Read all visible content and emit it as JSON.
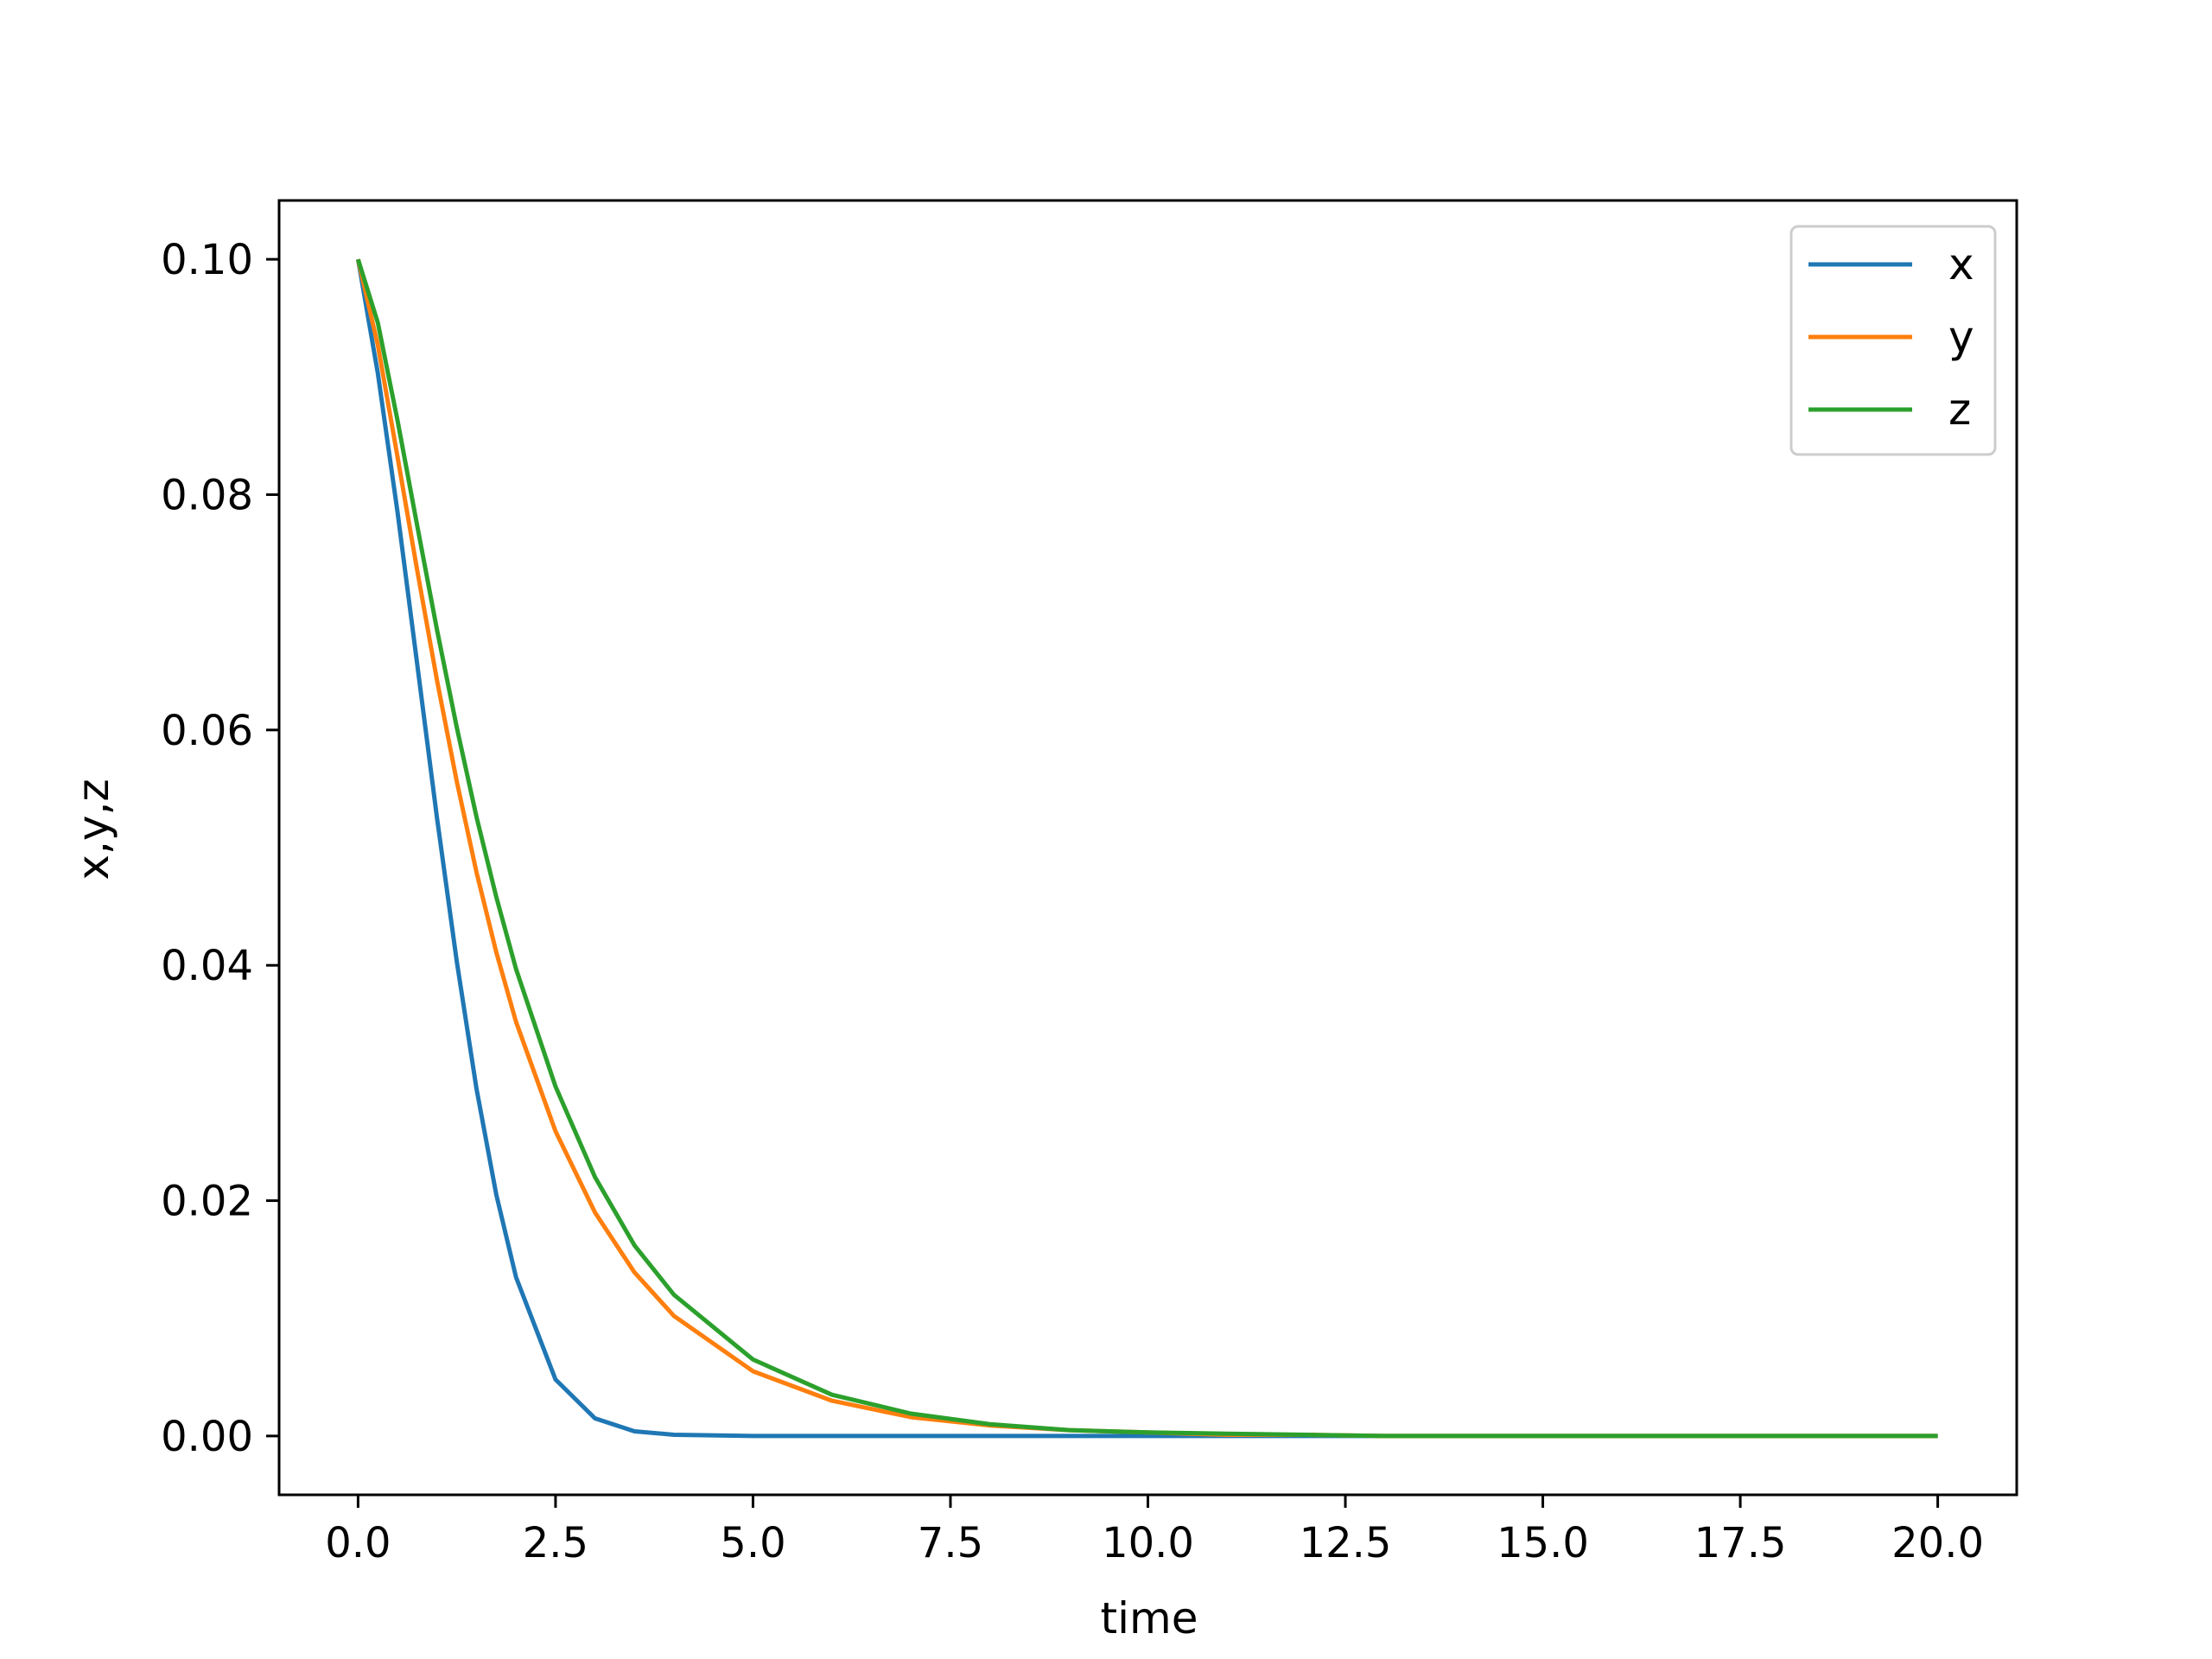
{
  "chart_data": {
    "type": "line",
    "title": "",
    "xlabel": "time",
    "ylabel": "x,y,z",
    "xlim": [
      -1.0,
      21.0
    ],
    "ylim": [
      -0.005,
      0.105
    ],
    "xticks": [
      0.0,
      2.5,
      5.0,
      7.5,
      10.0,
      12.5,
      15.0,
      17.5,
      20.0
    ],
    "xtick_labels": [
      "0.0",
      "2.5",
      "5.0",
      "7.5",
      "10.0",
      "12.5",
      "15.0",
      "17.5",
      "20.0"
    ],
    "yticks": [
      0.0,
      0.02,
      0.04,
      0.06,
      0.08,
      0.1
    ],
    "ytick_labels": [
      "0.00",
      "0.02",
      "0.04",
      "0.06",
      "0.08",
      "0.10"
    ],
    "grid": false,
    "legend_position": "top-right",
    "x": [
      0,
      0.25,
      0.5,
      0.75,
      1,
      1.25,
      1.5,
      1.75,
      2,
      2.5,
      3,
      3.5,
      4,
      5,
      6,
      7,
      8,
      9,
      10,
      11,
      12,
      13,
      14,
      15,
      16,
      17,
      18,
      19,
      20
    ],
    "series": [
      {
        "name": "x",
        "color": "#1f77b4",
        "values": [
          0.1,
          0.0903,
          0.0785,
          0.0655,
          0.0525,
          0.0403,
          0.0295,
          0.0205,
          0.0135,
          0.0048,
          0.0015,
          0.0004,
          0.0001,
          0.0,
          0.0,
          0.0,
          0.0,
          0.0,
          0.0,
          0.0,
          0.0,
          0.0,
          0.0,
          0.0,
          0.0,
          0.0,
          0.0,
          0.0,
          0.0
        ]
      },
      {
        "name": "y",
        "color": "#ff7f0e",
        "values": [
          0.1,
          0.0927,
          0.0832,
          0.0735,
          0.0642,
          0.0556,
          0.0479,
          0.0411,
          0.0352,
          0.0259,
          0.019,
          0.0139,
          0.0102,
          0.0055,
          0.003,
          0.0016,
          0.0009,
          0.0005,
          0.0003,
          0.0001,
          0.0001,
          0.0,
          0.0,
          0.0,
          0.0,
          0.0,
          0.0,
          0.0,
          0.0
        ]
      },
      {
        "name": "z",
        "color": "#2ca02c",
        "values": [
          0.1,
          0.0946,
          0.0863,
          0.0773,
          0.0685,
          0.0602,
          0.0526,
          0.0458,
          0.0397,
          0.0297,
          0.022,
          0.0162,
          0.012,
          0.0065,
          0.0035,
          0.0019,
          0.001,
          0.0005,
          0.0003,
          0.0002,
          0.0001,
          0.0,
          0.0,
          0.0,
          0.0,
          0.0,
          0.0,
          0.0,
          0.0
        ]
      }
    ]
  }
}
